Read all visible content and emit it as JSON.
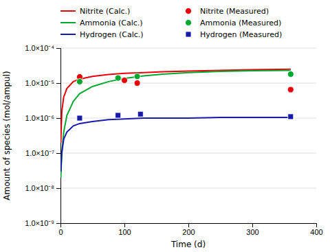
{
  "chart_data": {
    "type": "line",
    "xlabel": "Time (d)",
    "ylabel": "Amount of species (mol/ampul)",
    "log": "y",
    "grid": "y",
    "legend": "top",
    "xlim": [
      0,
      400
    ],
    "xticks": [
      0,
      100,
      200,
      300,
      400
    ],
    "ylim": [
      1e-09,
      0.0001
    ],
    "yticks": [
      {
        "value": 1e-09,
        "label": "1.0×10⁻⁹"
      },
      {
        "value": 1e-08,
        "label": "1.0×10⁻⁸"
      },
      {
        "value": 1e-07,
        "label": "1.0×10⁻⁷"
      },
      {
        "value": 1e-06,
        "label": "1.0×10⁻⁶"
      },
      {
        "value": 1e-05,
        "label": "1.0×10⁻⁵"
      },
      {
        "value": 0.0001,
        "label": "1.0×10⁻⁴"
      }
    ],
    "series": [
      {
        "name": "Nitrite (Calc.)",
        "type": "line",
        "line_style": "solid",
        "color": "#e8000a",
        "x": [
          0.5,
          2,
          5,
          10,
          20,
          30,
          50,
          75,
          100,
          130,
          160,
          200,
          250,
          300,
          360
        ],
        "values": [
          2e-07,
          1.5e-06,
          4e-06,
          7e-06,
          1.1e-05,
          1.3e-05,
          1.55e-05,
          1.75e-05,
          1.9e-05,
          2e-05,
          2.1e-05,
          2.2e-05,
          2.3e-05,
          2.4e-05,
          2.5e-05
        ]
      },
      {
        "name": "Ammonia (Calc.)",
        "type": "line",
        "line_style": "solid",
        "color": "#00a830",
        "x": [
          0.5,
          2,
          5,
          10,
          20,
          30,
          50,
          75,
          100,
          130,
          160,
          200,
          250,
          300,
          360
        ],
        "values": [
          2e-08,
          1e-07,
          4e-07,
          1.2e-06,
          3e-06,
          5e-06,
          8e-06,
          1.1e-05,
          1.35e-05,
          1.6e-05,
          1.8e-05,
          2e-05,
          2.15e-05,
          2.25e-05,
          2.3e-05
        ]
      },
      {
        "name": "Hydrogen (Calc.)",
        "type": "line",
        "line_style": "solid",
        "color": "#1a1aaa",
        "x": [
          0.5,
          2,
          5,
          10,
          20,
          30,
          50,
          75,
          100,
          130,
          160,
          200,
          250,
          300,
          360
        ],
        "values": [
          3e-08,
          1e-07,
          2.5e-07,
          4e-07,
          6e-07,
          7e-07,
          8e-07,
          9e-07,
          9.5e-07,
          1e-06,
          1e-06,
          1e-06,
          1.05e-06,
          1.05e-06,
          1.05e-06
        ]
      },
      {
        "name": "Nitrite (Measured)",
        "type": "scatter",
        "marker": "circle",
        "color": "#e8000a",
        "x": [
          30,
          100,
          120,
          360
        ],
        "values": [
          1.5e-05,
          1.2e-05,
          1e-05,
          6.5e-06
        ]
      },
      {
        "name": "Ammonia (Measured)",
        "type": "scatter",
        "marker": "circle",
        "color": "#00a830",
        "x": [
          30,
          90,
          120,
          360
        ],
        "values": [
          1.1e-05,
          1.4e-05,
          1.55e-05,
          1.8e-05
        ]
      },
      {
        "name": "Hydrogen (Measured)",
        "type": "scatter",
        "marker": "square",
        "color": "#1a1aaa",
        "x": [
          30,
          90,
          125,
          360
        ],
        "values": [
          1e-06,
          1.2e-06,
          1.3e-06,
          1.1e-06
        ]
      }
    ]
  }
}
